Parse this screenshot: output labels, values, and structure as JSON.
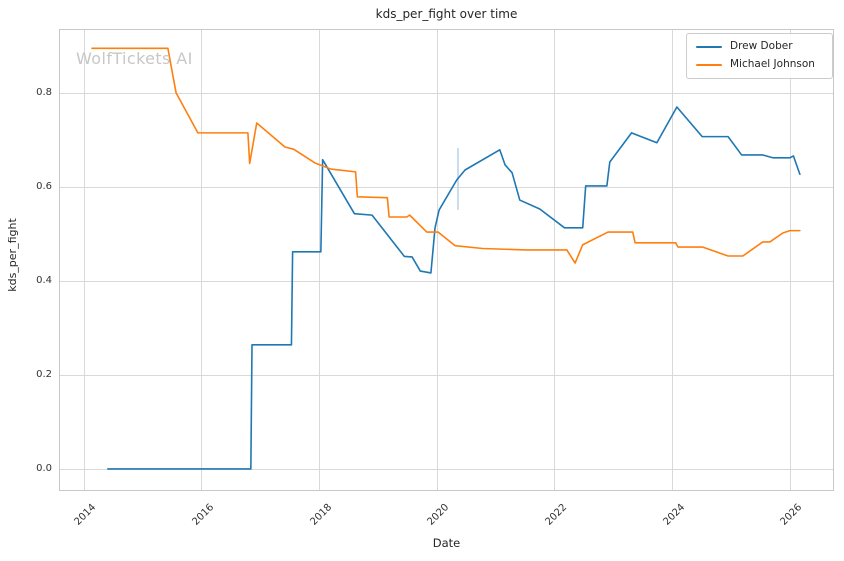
{
  "figure": {
    "title": "kds_per_fight over time",
    "watermark": "WolfTickets AI"
  },
  "axes": {
    "xlabel": "Date",
    "ylabel": "kds_per_fight",
    "x_ticks": [
      "2014",
      "2016",
      "2018",
      "2020",
      "2022",
      "2024",
      "2026"
    ],
    "x_tick_years": [
      2014,
      2016,
      2018,
      2020,
      2022,
      2024,
      2026
    ],
    "y_ticks": [
      "0.0",
      "0.2",
      "0.4",
      "0.6",
      "0.8"
    ],
    "y_tick_values": [
      0.0,
      0.2,
      0.4,
      0.6,
      0.8
    ]
  },
  "colors": {
    "grid": "#d9d9d9",
    "spine": "#c8c8c8",
    "tick_text": "#333333",
    "title_text": "#262626",
    "watermark": "#c7c7c7"
  },
  "chart_data": {
    "type": "line",
    "title": "kds_per_fight over time",
    "xlabel": "Date",
    "ylabel": "kds_per_fight",
    "x_range": [
      2013.58,
      2026.75
    ],
    "y_range": [
      -0.047,
      0.936
    ],
    "grid": true,
    "legend_position": "upper right",
    "series": [
      {
        "name": "Drew Dober",
        "color": "#1f77b4",
        "points": [
          [
            2014.41,
            0.0
          ],
          [
            2016.84,
            0.0
          ],
          [
            2016.86,
            0.264
          ],
          [
            2017.53,
            0.264
          ],
          [
            2017.55,
            0.462
          ],
          [
            2018.03,
            0.462
          ],
          [
            2018.06,
            0.658
          ],
          [
            2018.6,
            0.543
          ],
          [
            2018.9,
            0.54
          ],
          [
            2019.45,
            0.452
          ],
          [
            2019.58,
            0.451
          ],
          [
            2019.72,
            0.421
          ],
          [
            2019.9,
            0.417
          ],
          [
            2019.97,
            0.513
          ],
          [
            2020.04,
            0.551
          ],
          [
            2020.34,
            0.615
          ],
          [
            2020.48,
            0.636
          ],
          [
            2021.07,
            0.679
          ],
          [
            2021.16,
            0.647
          ],
          [
            2021.28,
            0.63
          ],
          [
            2021.41,
            0.572
          ],
          [
            2021.75,
            0.553
          ],
          [
            2022.17,
            0.513
          ],
          [
            2022.48,
            0.513
          ],
          [
            2022.53,
            0.602
          ],
          [
            2022.89,
            0.602
          ],
          [
            2022.94,
            0.653
          ],
          [
            2023.31,
            0.715
          ],
          [
            2023.74,
            0.694
          ],
          [
            2024.08,
            0.77
          ],
          [
            2024.51,
            0.707
          ],
          [
            2024.95,
            0.707
          ],
          [
            2025.18,
            0.668
          ],
          [
            2025.54,
            0.668
          ],
          [
            2025.71,
            0.662
          ],
          [
            2026.0,
            0.662
          ],
          [
            2026.06,
            0.666
          ],
          [
            2026.17,
            0.627
          ]
        ]
      },
      {
        "name": "Michael Johnson",
        "color": "#ff7f0e",
        "points": [
          [
            2014.14,
            0.895
          ],
          [
            2015.43,
            0.895
          ],
          [
            2015.57,
            0.8
          ],
          [
            2015.94,
            0.715
          ],
          [
            2016.79,
            0.715
          ],
          [
            2016.82,
            0.65
          ],
          [
            2016.94,
            0.736
          ],
          [
            2017.42,
            0.685
          ],
          [
            2017.57,
            0.68
          ],
          [
            2017.93,
            0.651
          ],
          [
            2018.2,
            0.638
          ],
          [
            2018.62,
            0.632
          ],
          [
            2018.65,
            0.579
          ],
          [
            2019.16,
            0.577
          ],
          [
            2019.19,
            0.536
          ],
          [
            2019.49,
            0.536
          ],
          [
            2019.54,
            0.54
          ],
          [
            2019.83,
            0.504
          ],
          [
            2020.02,
            0.504
          ],
          [
            2020.31,
            0.475
          ],
          [
            2020.78,
            0.469
          ],
          [
            2021.5,
            0.466
          ],
          [
            2022.21,
            0.466
          ],
          [
            2022.35,
            0.438
          ],
          [
            2022.48,
            0.477
          ],
          [
            2022.91,
            0.504
          ],
          [
            2023.33,
            0.504
          ],
          [
            2023.37,
            0.481
          ],
          [
            2024.06,
            0.481
          ],
          [
            2024.1,
            0.472
          ],
          [
            2024.52,
            0.472
          ],
          [
            2024.95,
            0.453
          ],
          [
            2025.2,
            0.453
          ],
          [
            2025.54,
            0.483
          ],
          [
            2025.66,
            0.483
          ],
          [
            2025.88,
            0.502
          ],
          [
            2026.0,
            0.507
          ],
          [
            2026.17,
            0.507
          ]
        ]
      }
    ],
    "artifact": {
      "note": "faint pale-blue vertical segment",
      "x": 2020.36,
      "y_from": 0.551,
      "y_to": 0.683,
      "color": "#b9d2ea"
    }
  }
}
